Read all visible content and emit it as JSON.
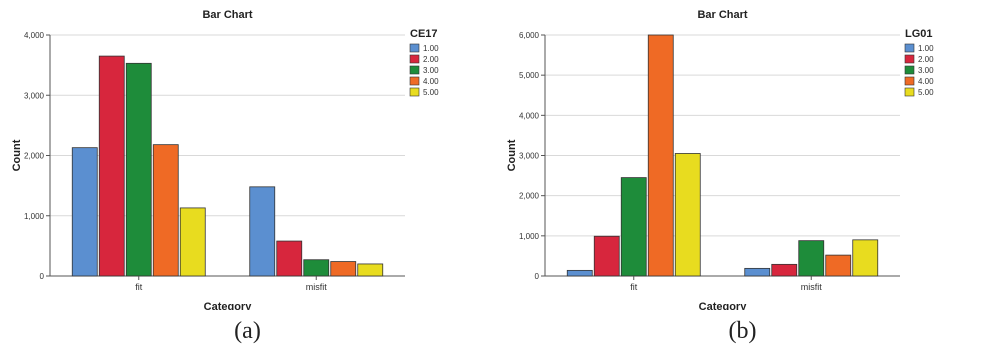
{
  "captions": [
    "(a)",
    "(b)"
  ],
  "colors": {
    "1.00": "#5b8fd0",
    "2.00": "#d7263d",
    "3.00": "#1e8c3a",
    "4.00": "#ef6a25",
    "5.00": "#e8dc1f",
    "grid": "#d9d9d9",
    "axis": "#555555",
    "bar_outline": "#333333"
  },
  "chart_data": [
    {
      "type": "bar",
      "title": "Bar Chart",
      "xlabel": "Category",
      "ylabel": "Count",
      "categories": [
        "fit",
        "misfit"
      ],
      "ylim": [
        0,
        4000
      ],
      "yticks": [
        0,
        1000,
        2000,
        3000,
        4000
      ],
      "ytick_labels": [
        "0",
        "1,000",
        "2,000",
        "3,000",
        "4,000"
      ],
      "grid": true,
      "legend_title": "CE17",
      "legend_position": "top-right",
      "series": [
        {
          "name": "1.00",
          "values": [
            2130,
            1480
          ]
        },
        {
          "name": "2.00",
          "values": [
            3650,
            580
          ]
        },
        {
          "name": "3.00",
          "values": [
            3530,
            270
          ]
        },
        {
          "name": "4.00",
          "values": [
            2180,
            240
          ]
        },
        {
          "name": "5.00",
          "values": [
            1130,
            200
          ]
        }
      ]
    },
    {
      "type": "bar",
      "title": "Bar Chart",
      "xlabel": "Category",
      "ylabel": "Count",
      "categories": [
        "fit",
        "misfit"
      ],
      "ylim": [
        0,
        6000
      ],
      "yticks": [
        0,
        1000,
        2000,
        3000,
        4000,
        5000,
        6000
      ],
      "ytick_labels": [
        "0",
        "1,000",
        "2,000",
        "3,000",
        "4,000",
        "5,000",
        "6,000"
      ],
      "grid": true,
      "legend_title": "LG01",
      "legend_position": "top-right",
      "series": [
        {
          "name": "1.00",
          "values": [
            140,
            190
          ]
        },
        {
          "name": "2.00",
          "values": [
            990,
            290
          ]
        },
        {
          "name": "3.00",
          "values": [
            2450,
            880
          ]
        },
        {
          "name": "4.00",
          "values": [
            6000,
            520
          ]
        },
        {
          "name": "5.00",
          "values": [
            3050,
            900
          ]
        }
      ]
    }
  ]
}
